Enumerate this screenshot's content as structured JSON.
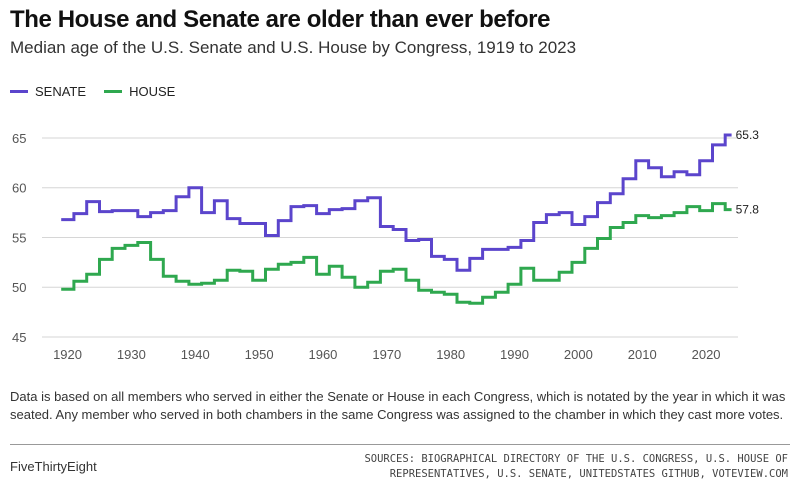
{
  "header": {
    "title": "The House and Senate are older than ever before",
    "subtitle": "Median age of the U.S. Senate and U.S. House by Congress, 1919 to 2023"
  },
  "legend": {
    "senate_label": "SENATE",
    "house_label": "HOUSE"
  },
  "footer": {
    "note": "Data is based on all members who served in either the Senate or House in each Congress, which is notated by the year in which it was seated. Any member who served in both chambers in the same Congress was assigned to the chamber in which they cast more votes.",
    "brand": "FiveThirtyEight",
    "sources": "SOURCES: BIOGRAPHICAL DIRECTORY OF THE U.S. CONGRESS, U.S. HOUSE OF REPRESENTATIVES, U.S. SENATE, UNITEDSTATES GITHUB, VOTEVIEW.COM"
  },
  "chart_data": {
    "type": "line",
    "step": true,
    "grid": true,
    "legend_position": "top-left",
    "x": [
      1919,
      1921,
      1923,
      1925,
      1927,
      1929,
      1931,
      1933,
      1935,
      1937,
      1939,
      1941,
      1943,
      1945,
      1947,
      1949,
      1951,
      1953,
      1955,
      1957,
      1959,
      1961,
      1963,
      1965,
      1967,
      1969,
      1971,
      1973,
      1975,
      1977,
      1979,
      1981,
      1983,
      1985,
      1987,
      1989,
      1991,
      1993,
      1995,
      1997,
      1999,
      2001,
      2003,
      2005,
      2007,
      2009,
      2011,
      2013,
      2015,
      2017,
      2019,
      2021,
      2023
    ],
    "xlim": [
      1916,
      2025
    ],
    "ylim": [
      45,
      66
    ],
    "x_ticks": [
      1920,
      1930,
      1940,
      1950,
      1960,
      1970,
      1980,
      1990,
      2000,
      2010,
      2020
    ],
    "y_ticks": [
      45,
      50,
      55,
      60,
      65
    ],
    "series": [
      {
        "name": "SENATE",
        "color": "#5b45cc",
        "end_label": "65.3",
        "values": [
          56.8,
          57.4,
          58.6,
          57.6,
          57.7,
          57.7,
          57.1,
          57.5,
          57.7,
          59.1,
          60.0,
          57.5,
          58.7,
          56.9,
          56.4,
          56.4,
          55.2,
          56.7,
          58.1,
          58.2,
          57.4,
          57.8,
          57.9,
          58.7,
          59.0,
          56.1,
          55.8,
          54.7,
          54.8,
          53.1,
          52.8,
          51.7,
          52.9,
          53.8,
          53.8,
          54.0,
          54.7,
          56.5,
          57.3,
          57.5,
          56.3,
          57.1,
          58.5,
          59.4,
          60.9,
          62.7,
          62.0,
          61.1,
          61.6,
          61.3,
          62.7,
          64.3,
          65.3
        ]
      },
      {
        "name": "HOUSE",
        "color": "#2fa84f",
        "end_label": "57.8",
        "values": [
          49.8,
          50.6,
          51.3,
          52.8,
          53.9,
          54.2,
          54.5,
          52.8,
          51.1,
          50.6,
          50.3,
          50.4,
          50.7,
          51.7,
          51.6,
          50.7,
          51.8,
          52.3,
          52.5,
          53.0,
          51.3,
          52.1,
          51.0,
          50.0,
          50.5,
          51.6,
          51.8,
          50.7,
          49.7,
          49.5,
          49.3,
          48.5,
          48.4,
          49.0,
          49.5,
          50.3,
          51.9,
          50.7,
          50.7,
          51.5,
          52.5,
          53.9,
          54.9,
          56.0,
          56.5,
          57.2,
          57.0,
          57.2,
          57.5,
          58.1,
          57.7,
          58.4,
          57.8
        ]
      }
    ]
  }
}
